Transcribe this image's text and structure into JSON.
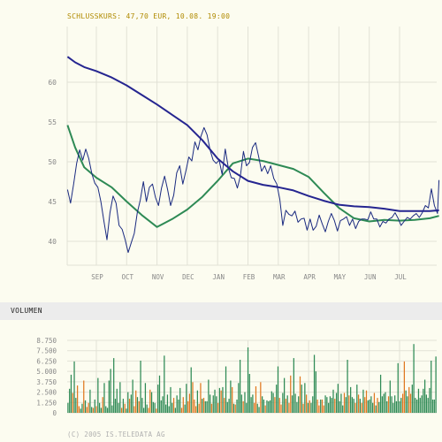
{
  "header": {
    "price_caption": "SCHLUSSKURS: 47,70 EUR, 10.08. 19:00",
    "volume_caption": "VOLUMEN",
    "copyright": "(C) 2005 IS.TELEDATA AG"
  },
  "colors": {
    "background": "#fcfcf0",
    "grid": "#e2e2d6",
    "axis_text": "#888888",
    "price_line": "#1a2a80",
    "ma_long": "#252590",
    "ma_short": "#2e8a55",
    "volume_up": "#2e8a55",
    "volume_down": "#e07820"
  },
  "chart_data": [
    {
      "type": "line",
      "xlabel": "",
      "ylabel": "",
      "month_labels": [
        "SEP",
        "OCT",
        "NOV",
        "DEC",
        "JAN",
        "FEB",
        "MAR",
        "APR",
        "MAY",
        "JUN",
        "JUL"
      ],
      "month_tick_positions": [
        1,
        2,
        3,
        4,
        5,
        6,
        7,
        8,
        9,
        10,
        11
      ],
      "xlim": [
        0.05,
        12.3
      ],
      "yticks": [
        40,
        45,
        50,
        55,
        60
      ],
      "ylim": [
        37,
        67
      ],
      "grid": true,
      "series": [
        {
          "name": "",
          "role": "price",
          "x": [
            0.05,
            0.15,
            0.25,
            0.35,
            0.45,
            0.55,
            0.65,
            0.75,
            0.85,
            0.95,
            1.05,
            1.15,
            1.25,
            1.35,
            1.45,
            1.55,
            1.65,
            1.75,
            1.85,
            1.95,
            2.05,
            2.15,
            2.25,
            2.35,
            2.45,
            2.55,
            2.65,
            2.75,
            2.85,
            2.95,
            3.05,
            3.15,
            3.25,
            3.35,
            3.45,
            3.55,
            3.65,
            3.75,
            3.85,
            3.95,
            4.05,
            4.15,
            4.25,
            4.35,
            4.45,
            4.55,
            4.65,
            4.75,
            4.85,
            4.95,
            5.05,
            5.15,
            5.25,
            5.35,
            5.45,
            5.55,
            5.65,
            5.75,
            5.85,
            5.95,
            6.05,
            6.15,
            6.25,
            6.35,
            6.45,
            6.55,
            6.65,
            6.75,
            6.85,
            6.95,
            7.05,
            7.15,
            7.25,
            7.35,
            7.45,
            7.55,
            7.65,
            7.75,
            7.85,
            7.95,
            8.05,
            8.15,
            8.25,
            8.35,
            8.45,
            8.55,
            8.65,
            8.75,
            8.85,
            8.95,
            9.05,
            9.15,
            9.25,
            9.35,
            9.45,
            9.55,
            9.65,
            9.75,
            9.85,
            9.95,
            10.05,
            10.15,
            10.25,
            10.35,
            10.45,
            10.55,
            10.65,
            10.75,
            10.85,
            10.95,
            11.05,
            11.15,
            11.25,
            11.35,
            11.45,
            11.55,
            11.65,
            11.75,
            11.85,
            11.95,
            12.05,
            12.15,
            12.25,
            12.3
          ],
          "values": [
            46.5,
            44.8,
            47.2,
            49.8,
            51.5,
            50.2,
            51.6,
            50.4,
            48.5,
            47.3,
            46.8,
            45.0,
            42.5,
            40.2,
            43.6,
            45.7,
            44.8,
            42.0,
            41.5,
            40.2,
            38.6,
            39.8,
            41.0,
            43.6,
            45.2,
            47.5,
            45.0,
            46.8,
            47.2,
            45.5,
            44.5,
            46.7,
            48.2,
            46.5,
            44.5,
            45.8,
            48.6,
            49.5,
            47.2,
            48.8,
            50.6,
            50.1,
            52.5,
            51.5,
            53.2,
            54.3,
            53.4,
            51.5,
            50.2,
            49.8,
            50.2,
            48.4,
            51.6,
            49.3,
            48.0,
            47.9,
            46.7,
            48.2,
            51.3,
            49.5,
            49.9,
            51.8,
            52.4,
            50.7,
            48.8,
            49.5,
            48.5,
            49.5,
            47.9,
            47.2,
            45.3,
            42.0,
            43.9,
            43.4,
            43.2,
            43.8,
            42.4,
            42.8,
            42.9,
            41.4,
            42.8,
            41.4,
            41.9,
            43.3,
            42.2,
            41.2,
            42.5,
            43.5,
            42.6,
            41.3,
            42.6,
            42.8,
            43.1,
            42.0,
            42.8,
            41.6,
            42.5,
            42.8,
            42.8,
            42.7,
            43.7,
            42.8,
            42.8,
            41.8,
            42.5,
            42.3,
            42.8,
            43.0,
            43.6,
            42.9,
            42.0,
            42.5,
            43.0,
            42.8,
            43.2,
            43.5,
            43.0,
            43.6,
            44.5,
            44.2,
            46.6,
            44.5,
            43.5,
            47.7
          ]
        },
        {
          "name": "",
          "role": "moving_average_long",
          "x": [
            0.05,
            0.3,
            0.6,
            1.0,
            1.5,
            2.0,
            2.5,
            3.0,
            3.5,
            4.0,
            4.5,
            5.0,
            5.5,
            6.0,
            6.5,
            7.0,
            7.5,
            8.0,
            8.5,
            9.0,
            9.5,
            10.0,
            10.5,
            11.0,
            11.5,
            12.0,
            12.3
          ],
          "values": [
            63.2,
            62.5,
            61.9,
            61.4,
            60.6,
            59.6,
            58.4,
            57.2,
            55.9,
            54.6,
            52.7,
            50.4,
            48.8,
            47.6,
            47.1,
            46.8,
            46.4,
            45.7,
            45.1,
            44.6,
            44.4,
            44.3,
            44.1,
            43.8,
            43.8,
            43.8,
            43.9
          ]
        },
        {
          "name": "",
          "role": "moving_average_short",
          "x": [
            0.05,
            0.3,
            0.6,
            1.0,
            1.5,
            2.0,
            2.5,
            3.0,
            3.5,
            4.0,
            4.5,
            5.0,
            5.5,
            6.0,
            6.5,
            7.0,
            7.5,
            8.0,
            8.5,
            9.0,
            9.5,
            10.0,
            10.5,
            11.0,
            11.5,
            12.0,
            12.3
          ],
          "values": [
            54.6,
            51.8,
            49.3,
            48.0,
            46.8,
            45.0,
            43.3,
            41.8,
            42.8,
            44.0,
            45.6,
            47.6,
            49.8,
            50.4,
            50.1,
            49.6,
            49.1,
            48.1,
            46.1,
            44.2,
            42.9,
            42.5,
            42.7,
            42.6,
            42.7,
            42.9,
            43.2
          ]
        }
      ]
    },
    {
      "type": "bar",
      "title": "VOLUMEN",
      "yticks": [
        0,
        1250,
        2500,
        3750,
        5000,
        6250,
        7500,
        8750
      ],
      "ytick_labels": [
        "0",
        "1.250",
        "2.500",
        "3.750",
        "5.000",
        "6.250",
        "7.500",
        "8.750"
      ],
      "ylim": [
        0,
        8750
      ],
      "grid": true,
      "series": [
        {
          "name": "",
          "role": "volume",
          "values": [
            1200,
            2900,
            4600,
            2400,
            6200,
            1800,
            3300,
            800,
            500,
            1100,
            3900,
            1500,
            700,
            1200,
            2800,
            700,
            600,
            1600,
            800,
            4200,
            1200,
            600,
            1900,
            3600,
            800,
            600,
            3900,
            5300,
            900,
            6600,
            1700,
            2900,
            1200,
            3700,
            600,
            1700,
            1100,
            500,
            2500,
            1700,
            2200,
            4000,
            800,
            2700,
            1900,
            1400,
            6300,
            1800,
            600,
            3600,
            1000,
            600,
            2800,
            2500,
            1300,
            1200,
            500,
            3400,
            4500,
            1500,
            2000,
            6900,
            1000,
            2200,
            800,
            3100,
            1200,
            1800,
            600,
            2100,
            1600,
            3000,
            600,
            1900,
            1000,
            3500,
            1400,
            2300,
            5500,
            3700,
            1600,
            800,
            2700,
            1100,
            3600,
            1700,
            1800,
            1400,
            1400,
            4000,
            2200,
            1100,
            2100,
            2800,
            2000,
            1200,
            3000,
            2700,
            3100,
            1800,
            5600,
            1300,
            1700,
            3900,
            3100,
            1100,
            1000,
            1600,
            3600,
            6400,
            2200,
            1400,
            2500,
            1200,
            7900,
            4700,
            1900,
            2200,
            1200,
            3200,
            1100,
            700,
            3700,
            2000,
            1600,
            900,
            1500,
            1400,
            1500,
            2600,
            2400,
            1900,
            3400,
            5600,
            1800,
            1000,
            2400,
            4200,
            1700,
            2100,
            1200,
            4500,
            2100,
            6600,
            2300,
            1300,
            2000,
            4400,
            3400,
            1100,
            3600,
            2200,
            1200,
            1500,
            1200,
            2000,
            7000,
            5000,
            1600,
            900,
            1600,
            1600,
            900,
            2100,
            1900,
            1200,
            2000,
            1800,
            2800,
            1700,
            2400,
            3500,
            1400,
            2300,
            900,
            2400,
            1900,
            6400,
            2100,
            3100,
            1900,
            1700,
            1200,
            3400,
            2200,
            1700,
            1200,
            2800,
            1900,
            2700,
            1500,
            1600,
            2000,
            1200,
            2400,
            900,
            1800,
            1300,
            4600,
            2000,
            2300,
            2500,
            1400,
            2000,
            3900,
            2000,
            1200,
            2100,
            1400,
            6000,
            1400,
            1800,
            2300,
            6200,
            2700,
            2000,
            3100,
            2300,
            3400,
            8300,
            1800,
            1600,
            2900,
            1800,
            2100,
            2900,
            4000,
            2200,
            1800,
            3000,
            6300,
            1600,
            1600,
            6800
          ],
          "colors": [
            "u",
            "u",
            "u",
            "d",
            "u",
            "u",
            "d",
            "d",
            "u",
            "u",
            "d",
            "u",
            "d",
            "d",
            "u",
            "u",
            "d",
            "u",
            "d",
            "u",
            "u",
            "u",
            "d",
            "u",
            "u",
            "u",
            "u",
            "u",
            "u",
            "u",
            "u",
            "u",
            "u",
            "u",
            "d",
            "u",
            "d",
            "u",
            "u",
            "d",
            "u",
            "u",
            "d",
            "d",
            "u",
            "d",
            "u",
            "u",
            "u",
            "u",
            "u",
            "d",
            "d",
            "u",
            "u",
            "u",
            "d",
            "u",
            "u",
            "u",
            "u",
            "u",
            "u",
            "u",
            "u",
            "u",
            "u",
            "d",
            "u",
            "u",
            "u",
            "u",
            "d",
            "d",
            "u",
            "u",
            "d",
            "d",
            "u",
            "d",
            "d",
            "d",
            "u",
            "d",
            "d",
            "u",
            "d",
            "u",
            "u",
            "u",
            "u",
            "d",
            "u",
            "u",
            "u",
            "d",
            "u",
            "d",
            "u",
            "d",
            "u",
            "u",
            "u",
            "u",
            "d",
            "u",
            "d",
            "u",
            "u",
            "u",
            "u",
            "d",
            "u",
            "u",
            "u",
            "u",
            "u",
            "u",
            "d",
            "d",
            "u",
            "u",
            "d",
            "u",
            "u",
            "d",
            "u",
            "u",
            "u",
            "u",
            "u",
            "d",
            "u",
            "u",
            "d",
            "d",
            "u",
            "u",
            "d",
            "u",
            "d",
            "d",
            "u",
            "u",
            "u",
            "u",
            "u",
            "d",
            "u",
            "d",
            "u",
            "d",
            "u",
            "d",
            "u",
            "u",
            "u",
            "u",
            "d",
            "d",
            "u",
            "d",
            "d",
            "u",
            "u",
            "u",
            "u",
            "u",
            "u",
            "d",
            "u",
            "u",
            "u",
            "u",
            "u",
            "d",
            "u",
            "u",
            "d",
            "u",
            "u",
            "u",
            "d",
            "u",
            "d",
            "u",
            "d",
            "u",
            "d",
            "d",
            "u",
            "u",
            "u",
            "u",
            "d",
            "u",
            "d",
            "u",
            "u",
            "u",
            "u",
            "u",
            "u",
            "d",
            "u",
            "u",
            "u",
            "u",
            "u",
            "u",
            "u",
            "u",
            "d",
            "d",
            "u",
            "u",
            "d",
            "d",
            "u",
            "u",
            "u",
            "u",
            "u",
            "u",
            "u",
            "u",
            "u",
            "u",
            "u",
            "u",
            "u",
            "u",
            "u",
            "u",
            "u",
            "u",
            "u",
            "u",
            "u",
            "u",
            "d",
            "u",
            "u",
            "u",
            "u"
          ]
        }
      ]
    }
  ]
}
